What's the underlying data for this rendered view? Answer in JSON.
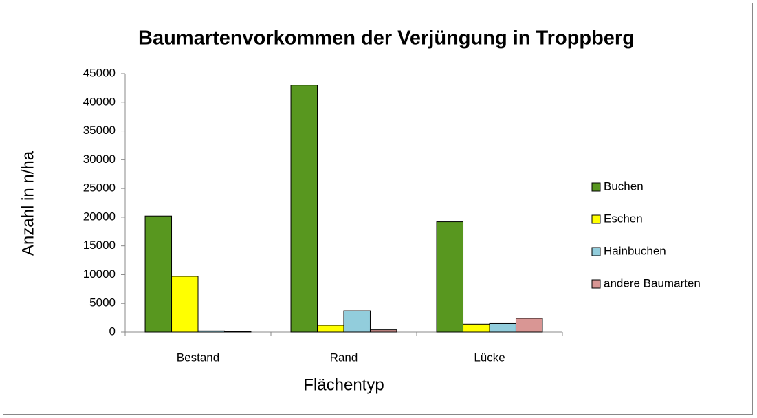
{
  "chart_data": {
    "type": "bar",
    "title": "Baumartenvorkommen der Verjüngung in Troppberg",
    "x_label": "Flächentyp",
    "y_label": "Anzahl in n/ha",
    "categories": [
      "Bestand",
      "Rand",
      "Lücke"
    ],
    "series": [
      {
        "name": "Buchen",
        "color": "#58971f",
        "values": [
          20200,
          43000,
          19200
        ]
      },
      {
        "name": "Eschen",
        "color": "#ffff00",
        "values": [
          9700,
          1200,
          1400
        ]
      },
      {
        "name": "Hainbuchen",
        "color": "#92cddc",
        "values": [
          200,
          3700,
          1500
        ]
      },
      {
        "name": "andere Baumarten",
        "color": "#d99694",
        "values": [
          100,
          400,
          2400
        ]
      }
    ],
    "ylim": [
      0,
      45000
    ],
    "yticks": [
      0,
      5000,
      10000,
      15000,
      20000,
      25000,
      30000,
      35000,
      40000,
      45000
    ],
    "legend": "right"
  }
}
